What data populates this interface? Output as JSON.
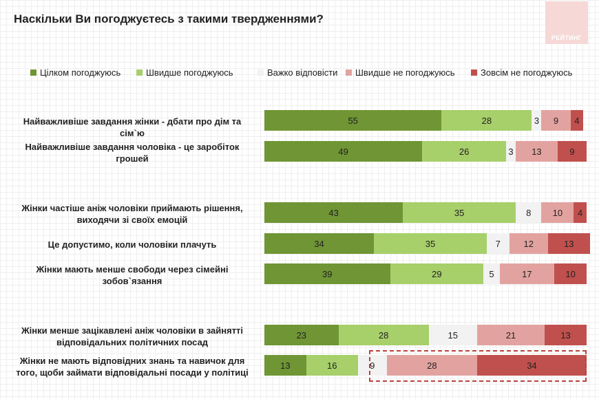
{
  "title": "Наскільки Ви погоджуєтесь з такими твердженнями?",
  "logo_text": "РЕЙТИНГ",
  "chart_data": {
    "type": "bar",
    "orientation": "horizontal",
    "stacked": true,
    "legend_position": "top",
    "categories": [
      "Найважливіше завдання жінки - дбати про дім та сім`ю",
      "Найважливіше завдання чоловіка - це заробіток грошей",
      "Жінки частіше аніж чоловіки приймають рішення, виходячи зі своїх емоцій",
      "Це допустимо, коли чоловіки плачуть",
      "Жінки мають менше свободи через сімейні зобов`язання",
      "Жінки менше зацікавлені аніж чоловіки в зайнятті відповідальних політичних посад",
      "Жінки не мають відповідних знань та навичок для того, щоби займати відповідальні посади у політиці"
    ],
    "series": [
      {
        "name": "Цілком погоджуюсь",
        "color": "#6f9534",
        "values": [
          55,
          49,
          43,
          34,
          39,
          23,
          13
        ]
      },
      {
        "name": "Швидше погоджуюсь",
        "color": "#a7cf6a",
        "values": [
          28,
          26,
          35,
          35,
          29,
          28,
          16
        ]
      },
      {
        "name": "Важко відповісти",
        "color": "#f2f2f2",
        "values": [
          3,
          3,
          8,
          7,
          5,
          15,
          9
        ]
      },
      {
        "name": "Швидше не погоджуюсь",
        "color": "#e2a3a0",
        "values": [
          9,
          13,
          10,
          12,
          17,
          21,
          28
        ]
      },
      {
        "name": "Зовсім не погоджуюсь",
        "color": "#c0504d",
        "values": [
          4,
          9,
          4,
          13,
          10,
          13,
          34
        ]
      }
    ],
    "xlim": [
      0,
      100
    ],
    "grid": false
  }
}
